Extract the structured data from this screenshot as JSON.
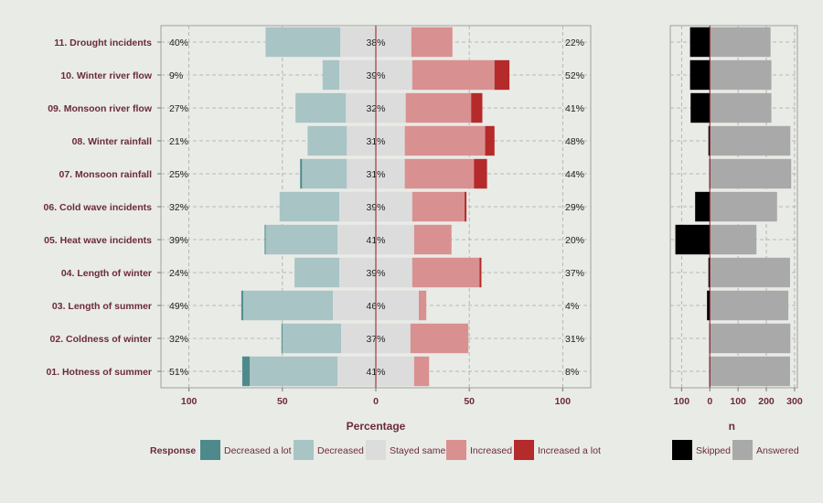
{
  "chart_data": [
    {
      "type": "bar",
      "subtype": "diverging-stacked-percent",
      "xlabel": "Percentage",
      "xlim": [
        -115,
        115
      ],
      "xticks": [
        -100,
        -50,
        0,
        50,
        100
      ],
      "xtick_labels": [
        "100",
        "50",
        "0",
        "50",
        "100"
      ],
      "grid": true,
      "categories": [
        "11. Drought incidents",
        "10. Winter river flow",
        "09. Monsoon river flow",
        "08. Winter rainfall",
        "07. Monsoon rainfall",
        "06. Cold wave incidents",
        "05. Heat wave incidents",
        "04. Length of winter",
        "03. Length of summer",
        "02. Coldness of winter",
        "01. Hotness of summer"
      ],
      "series": [
        {
          "name": "Decreased a lot",
          "color": "#4e8a8c",
          "values": [
            0,
            0,
            0,
            0,
            1,
            0,
            0.5,
            0,
            1,
            0.5,
            4
          ]
        },
        {
          "name": "Decreased",
          "color": "#a8c4c5",
          "values": [
            40,
            9,
            27,
            21,
            24,
            32,
            38.5,
            24,
            48,
            31.5,
            47
          ]
        },
        {
          "name": "Stayed same",
          "color": "#dcdcdc",
          "values": [
            38,
            39,
            32,
            31,
            31,
            39,
            41,
            39,
            46,
            37,
            41
          ]
        },
        {
          "name": "Increased",
          "color": "#d99090",
          "values": [
            22,
            44,
            35,
            43,
            37,
            28,
            20,
            36,
            4,
            31,
            8
          ]
        },
        {
          "name": "Increased a lot",
          "color": "#b52a2a",
          "values": [
            0,
            8,
            6,
            5,
            7,
            1,
            0,
            1,
            0,
            0,
            0
          ]
        }
      ],
      "left_pct": [
        "40%",
        "9%",
        "27%",
        "21%",
        "25%",
        "32%",
        "39%",
        "24%",
        "49%",
        "32%",
        "51%"
      ],
      "center_pct": [
        "38%",
        "39%",
        "32%",
        "31%",
        "31%",
        "39%",
        "41%",
        "39%",
        "46%",
        "37%",
        "41%"
      ],
      "right_pct": [
        "22%",
        "52%",
        "41%",
        "48%",
        "44%",
        "29%",
        "20%",
        "37%",
        "4%",
        "31%",
        "8%"
      ],
      "legend_title": "Response",
      "legend_position": "bottom"
    },
    {
      "type": "bar",
      "subtype": "diverging-count",
      "xlabel": "n",
      "xlim": [
        -140,
        310
      ],
      "xticks": [
        -100,
        0,
        100,
        200,
        300
      ],
      "xtick_labels": [
        "100",
        "0",
        "100",
        "200",
        "300"
      ],
      "grid": true,
      "series": [
        {
          "name": "Skipped",
          "color": "#000000",
          "values": [
            70,
            70,
            68,
            5,
            2,
            52,
            122,
            5,
            10,
            2,
            2
          ]
        },
        {
          "name": "Answered",
          "color": "#a9a9a9",
          "values": [
            215,
            218,
            218,
            285,
            288,
            238,
            165,
            284,
            278,
            285,
            284
          ]
        }
      ],
      "legend_position": "bottom"
    }
  ]
}
